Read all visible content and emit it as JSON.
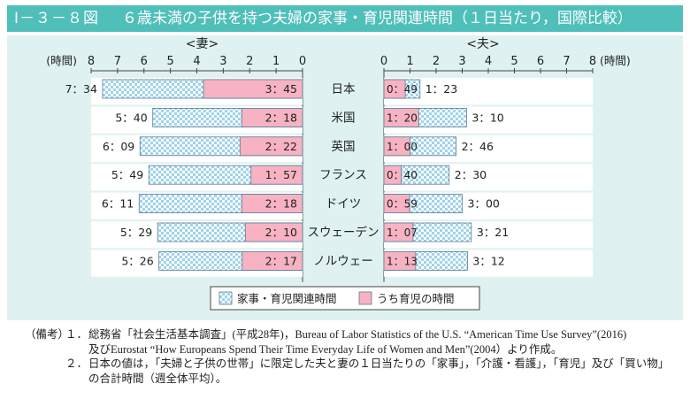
{
  "header": {
    "figure_number": "Ⅰ－３－８図",
    "title": "６歳未満の子供を持つ夫婦の家事・育児関連時間（１日当たり，国際比較）"
  },
  "chart_data": {
    "type": "bar",
    "orientation": "horizontal",
    "left_panel_title": "<妻>",
    "right_panel_title": "<夫>",
    "axis_unit_label": "(時間)",
    "left_axis_ticks": [
      "8",
      "7",
      "6",
      "5",
      "4",
      "3",
      "2",
      "1",
      "0"
    ],
    "right_axis_ticks": [
      "0",
      "1",
      "2",
      "3",
      "4",
      "5",
      "6",
      "7",
      "8"
    ],
    "xlim": [
      0,
      8
    ],
    "categories": [
      "日本",
      "米国",
      "英国",
      "フランス",
      "ドイツ",
      "スウェーデン",
      "ノルウェー"
    ],
    "series": [
      {
        "name": "家事・育児関連時間",
        "wife_values": [
          7.5667,
          5.6667,
          6.15,
          5.8167,
          6.1833,
          5.4833,
          5.4333
        ],
        "husband_values": [
          1.3833,
          3.1667,
          2.7667,
          2.5,
          3.0,
          3.35,
          3.2
        ],
        "wife_labels": [
          "7：34",
          "5：40",
          "6：09",
          "5：49",
          "6：11",
          "5：29",
          "5：26"
        ],
        "husband_labels": [
          "1：23",
          "3：10",
          "2：46",
          "2：30",
          "3：00",
          "3：21",
          "3：12"
        ],
        "color": "#9fd4ec",
        "pattern": "checker"
      },
      {
        "name": "うち育児の時間",
        "wife_values": [
          3.75,
          2.3,
          2.3667,
          1.95,
          2.3,
          2.1667,
          2.2833
        ],
        "husband_values": [
          0.8167,
          1.3333,
          1.0,
          0.6667,
          0.9833,
          1.1167,
          1.2167
        ],
        "wife_labels": [
          "3：45",
          "2：18",
          "2：22",
          "1：57",
          "2：18",
          "2：10",
          "2：17"
        ],
        "husband_labels": [
          "0：49",
          "1：20",
          "1：00",
          "0：40",
          "0：59",
          "1：07",
          "1：13"
        ],
        "color": "#f7b3c2"
      }
    ],
    "legend_position": "bottom-center",
    "grid": false
  },
  "notes": {
    "label": "（備考）",
    "items": [
      {
        "number": "１．",
        "lines": [
          "総務省「社会生活基本調査」(平成28年)，Bureau of Labor Statistics of the U.S. “American Time Use Survey”(2016)",
          "及びEurostat “How Europeans Spend Their Time Everyday Life of Women and Men”(2004）より作成。"
        ]
      },
      {
        "number": "２．",
        "lines": [
          "日本の値は，「夫婦と子供の世帯」に限定した夫と妻の１日当たりの「家事」，「介護・看護」，「育児」及び「買い物」",
          "の合計時間（週全体平均）。"
        ]
      }
    ]
  }
}
